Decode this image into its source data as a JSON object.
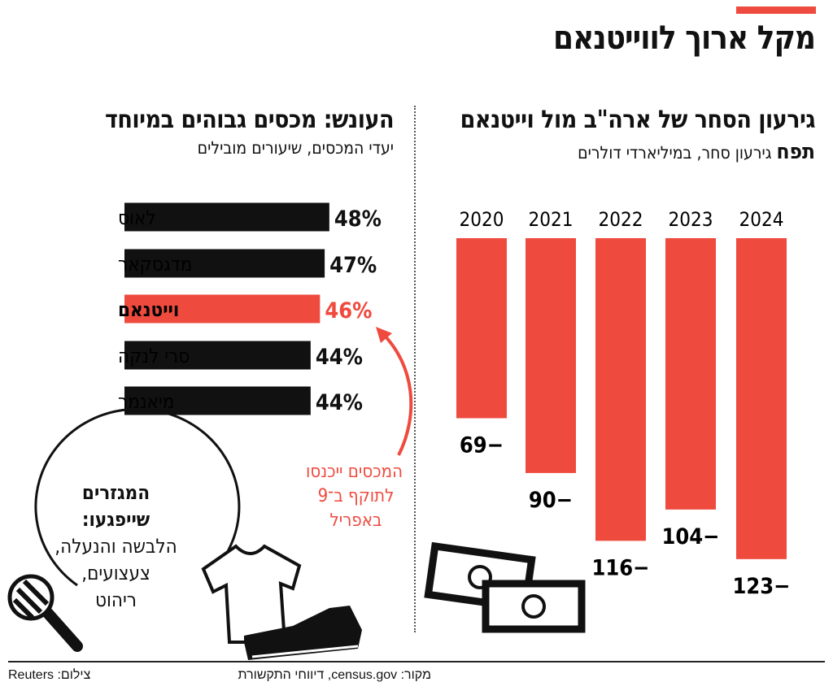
{
  "title": "מקל ארוך לווייטנאם",
  "chart_data": [
    {
      "type": "bar",
      "title": "גירעון הסחר של ארה\"ב מול וייטנאם",
      "subtitle_bold": "תפח",
      "subtitle": "גירעון סחר, במיליארדי דולרים",
      "categories": [
        "2020",
        "2021",
        "2022",
        "2023",
        "2024"
      ],
      "values": [
        -69,
        -90,
        -116,
        -104,
        -123
      ],
      "value_labels": [
        "−69",
        "−90",
        "−116",
        "−104",
        "−123"
      ],
      "color": "#ef4a3e"
    },
    {
      "type": "bar",
      "orientation": "horizontal",
      "title": "העונש: מכסים גבוהים במיוחד",
      "subtitle": "יעדי המכסים, שיעורים מובילים",
      "categories": [
        "לאוס",
        "מדגסקאר",
        "וייטנאם",
        "סרי לנקה",
        "מיאנמר"
      ],
      "values": [
        48,
        47,
        46,
        44,
        44
      ],
      "value_labels": [
        "48%",
        "47%",
        "46%",
        "44%",
        "44%"
      ],
      "highlight": "וייטנאם",
      "color": "#111111",
      "highlight_color": "#ef4a3e"
    }
  ],
  "annotation": [
    "המכסים ייכנסו",
    "לתוקף ב־9",
    "באפריל"
  ],
  "sectors": {
    "heading": [
      "המגזרים",
      "שייפגעו:"
    ],
    "items": [
      "הלבשה והנעלה,",
      "צעצועים,",
      "ריהוט"
    ]
  },
  "footer": {
    "source": "מקור: census.gov, דיווחי התקשורת",
    "credit": "צילום: Reuters"
  }
}
